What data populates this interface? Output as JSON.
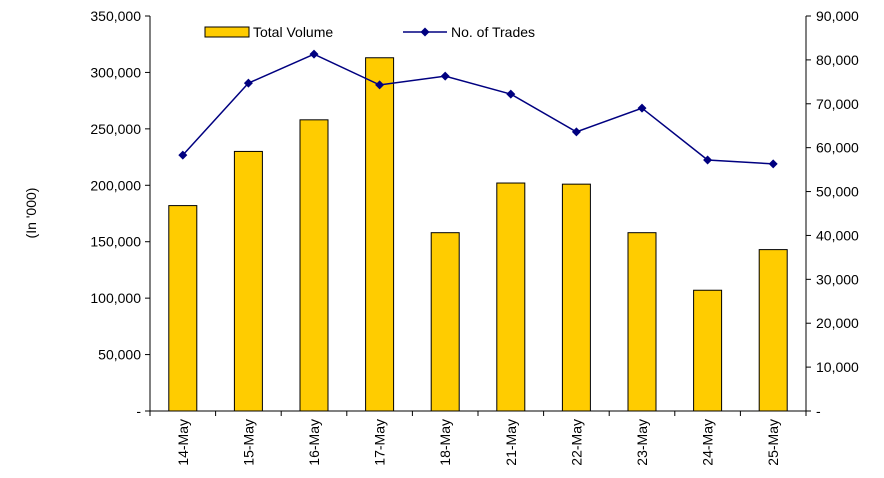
{
  "chart_data": {
    "type": "bar_line",
    "y_label": "(In '000)",
    "categories": [
      "14-May",
      "15-May",
      "16-May",
      "17-May",
      "18-May",
      "21-May",
      "22-May",
      "23-May",
      "24-May",
      "25-May"
    ],
    "series": [
      {
        "name": "Total Volume",
        "type": "bar",
        "color": "#ffcc00",
        "values": [
          182000,
          230000,
          258000,
          313000,
          158000,
          202000,
          201000,
          158000,
          107000,
          143000
        ]
      },
      {
        "name": "No. of Trades",
        "type": "line",
        "axis": "y2",
        "color": "#000080",
        "values": [
          58300,
          74700,
          81300,
          74300,
          76300,
          72200,
          63600,
          69000,
          57200,
          56300
        ]
      }
    ],
    "ylim": [
      0,
      350000
    ],
    "yticks": [
      {
        "value": 0,
        "label": "-"
      },
      {
        "value": 50000,
        "label": "50,000"
      },
      {
        "value": 100000,
        "label": "100,000"
      },
      {
        "value": 150000,
        "label": "150,000"
      },
      {
        "value": 200000,
        "label": "200,000"
      },
      {
        "value": 250000,
        "label": "250,000"
      },
      {
        "value": 300000,
        "label": "300,000"
      },
      {
        "value": 350000,
        "label": "350,000"
      }
    ],
    "y2lim": [
      0,
      90000
    ],
    "y2ticks": [
      {
        "value": 0,
        "label": "-"
      },
      {
        "value": 10000,
        "label": "10,000"
      },
      {
        "value": 20000,
        "label": "20,000"
      },
      {
        "value": 30000,
        "label": "30,000"
      },
      {
        "value": 40000,
        "label": "40,000"
      },
      {
        "value": 50000,
        "label": "50,000"
      },
      {
        "value": 60000,
        "label": "60,000"
      },
      {
        "value": 70000,
        "label": "70,000"
      },
      {
        "value": 80000,
        "label": "80,000"
      },
      {
        "value": 90000,
        "label": "90,000"
      }
    ],
    "legend": "top"
  }
}
